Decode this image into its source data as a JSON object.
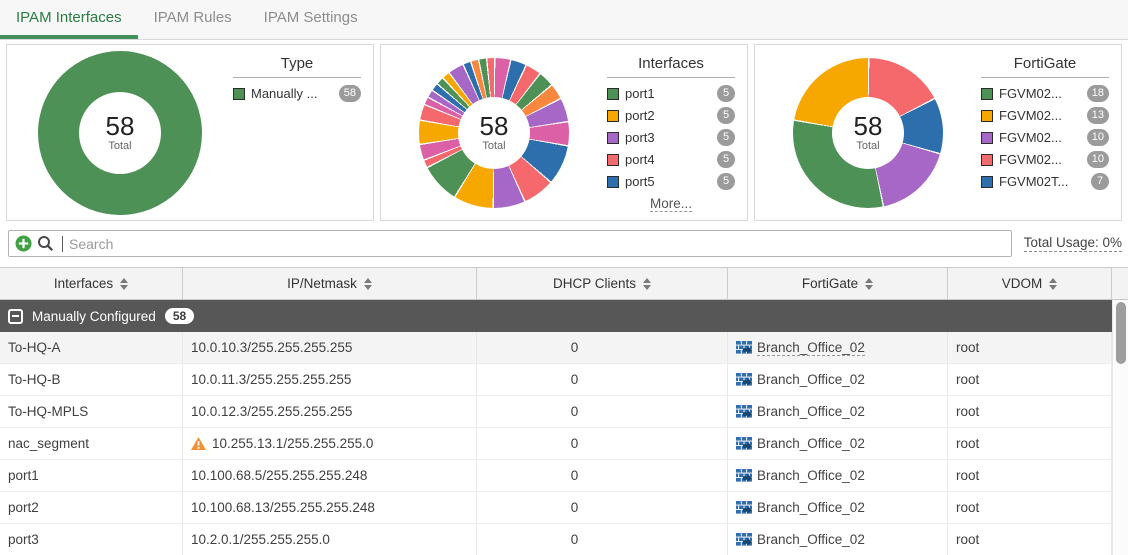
{
  "tabs": [
    {
      "label": "IPAM Interfaces",
      "active": true
    },
    {
      "label": "IPAM Rules",
      "active": false
    },
    {
      "label": "IPAM Settings",
      "active": false
    }
  ],
  "palette": {
    "g": "#4e9156",
    "o": "#f7a800",
    "o2": "#f9873e",
    "p": "#a667c7",
    "s": "#f5696d",
    "b": "#2d6ead",
    "m": "#dc60a6"
  },
  "charts": [
    {
      "title": "Type",
      "total": "58",
      "total_label": "Total",
      "segments": [
        {
          "c": "g",
          "v": 58
        }
      ],
      "legend": [
        {
          "color": "g",
          "label": "Manually ...",
          "badge": "58"
        }
      ]
    },
    {
      "title": "Interfaces",
      "total": "58",
      "total_label": "Total",
      "segments": [
        {
          "c": "m",
          "v": 2
        },
        {
          "c": "b",
          "v": 2
        },
        {
          "c": "s",
          "v": 2
        },
        {
          "c": "g",
          "v": 2
        },
        {
          "c": "o2",
          "v": 2
        },
        {
          "c": "p",
          "v": 3
        },
        {
          "c": "m",
          "v": 3
        },
        {
          "c": "b",
          "v": 5
        },
        {
          "c": "s",
          "v": 4
        },
        {
          "c": "p",
          "v": 4
        },
        {
          "c": "o",
          "v": 5
        },
        {
          "c": "g",
          "v": 5
        },
        {
          "c": "s",
          "v": 1
        },
        {
          "c": "m",
          "v": 2
        },
        {
          "c": "o",
          "v": 3
        },
        {
          "c": "s",
          "v": 2
        },
        {
          "c": "m",
          "v": 1
        },
        {
          "c": "p",
          "v": 1
        },
        {
          "c": "b",
          "v": 1
        },
        {
          "c": "g",
          "v": 1
        },
        {
          "c": "o",
          "v": 1
        },
        {
          "c": "p",
          "v": 2
        },
        {
          "c": "b",
          "v": 1
        },
        {
          "c": "o2",
          "v": 1
        },
        {
          "c": "g",
          "v": 1
        },
        {
          "c": "s",
          "v": 1
        }
      ],
      "legend": [
        {
          "color": "g",
          "label": "port1",
          "badge": "5"
        },
        {
          "color": "o",
          "label": "port2",
          "badge": "5"
        },
        {
          "color": "p",
          "label": "port3",
          "badge": "5"
        },
        {
          "color": "s",
          "label": "port4",
          "badge": "5"
        },
        {
          "color": "b",
          "label": "port5",
          "badge": "5"
        }
      ],
      "more_label": "More..."
    },
    {
      "title": "FortiGate",
      "total": "58",
      "total_label": "Total",
      "segments": [
        {
          "c": "s",
          "v": 10
        },
        {
          "c": "b",
          "v": 7
        },
        {
          "c": "p",
          "v": 10
        },
        {
          "c": "g",
          "v": 18
        },
        {
          "c": "o",
          "v": 13
        }
      ],
      "legend": [
        {
          "color": "g",
          "label": "FGVM02...",
          "badge": "18"
        },
        {
          "color": "o",
          "label": "FGVM02...",
          "badge": "13"
        },
        {
          "color": "p",
          "label": "FGVM02...",
          "badge": "10"
        },
        {
          "color": "s",
          "label": "FGVM02...",
          "badge": "10"
        },
        {
          "color": "b",
          "label": "FGVM02T...",
          "badge": "7"
        }
      ]
    }
  ],
  "search": {
    "placeholder": "Search"
  },
  "total_usage_label": "Total Usage: 0%",
  "table": {
    "columns": [
      {
        "label": "Interfaces"
      },
      {
        "label": "IP/Netmask"
      },
      {
        "label": "DHCP Clients"
      },
      {
        "label": "FortiGate"
      },
      {
        "label": "VDOM"
      }
    ],
    "group": {
      "label": "Manually Configured",
      "badge": "58"
    },
    "rows": [
      {
        "interface": "To-HQ-A",
        "ip": "10.0.10.3/255.255.255.255",
        "warning": false,
        "dhcp": "0",
        "fortigate": "Branch_Office_02",
        "vdom": "root",
        "hover": true
      },
      {
        "interface": "To-HQ-B",
        "ip": "10.0.11.3/255.255.255.255",
        "warning": false,
        "dhcp": "0",
        "fortigate": "Branch_Office_02",
        "vdom": "root",
        "hover": false
      },
      {
        "interface": "To-HQ-MPLS",
        "ip": "10.0.12.3/255.255.255.255",
        "warning": false,
        "dhcp": "0",
        "fortigate": "Branch_Office_02",
        "vdom": "root",
        "hover": false
      },
      {
        "interface": "nac_segment",
        "ip": "10.255.13.1/255.255.255.0",
        "warning": true,
        "dhcp": "0",
        "fortigate": "Branch_Office_02",
        "vdom": "root",
        "hover": false
      },
      {
        "interface": "port1",
        "ip": "10.100.68.5/255.255.255.248",
        "warning": false,
        "dhcp": "0",
        "fortigate": "Branch_Office_02",
        "vdom": "root",
        "hover": false
      },
      {
        "interface": "port2",
        "ip": "10.100.68.13/255.255.255.248",
        "warning": false,
        "dhcp": "0",
        "fortigate": "Branch_Office_02",
        "vdom": "root",
        "hover": false
      },
      {
        "interface": "port3",
        "ip": "10.2.0.1/255.255.255.0",
        "warning": false,
        "dhcp": "0",
        "fortigate": "Branch_Office_02",
        "vdom": "root",
        "hover": false
      }
    ]
  }
}
